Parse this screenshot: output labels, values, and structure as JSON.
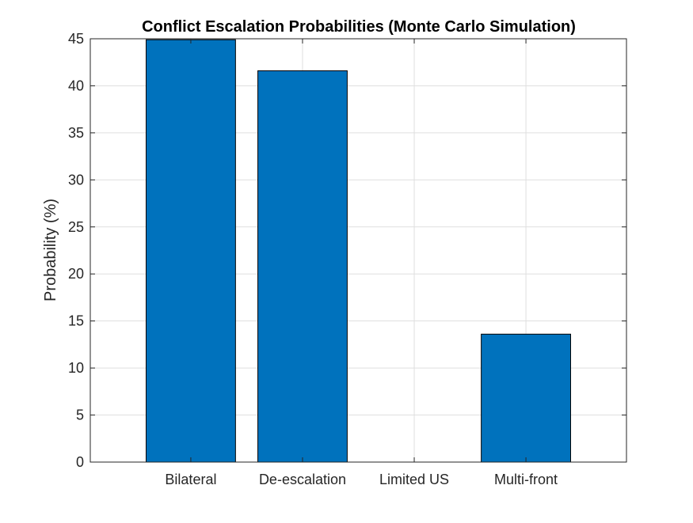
{
  "chart_data": {
    "type": "bar",
    "title": "Conflict Escalation Probabilities (Monte Carlo Simulation)",
    "xlabel": "",
    "ylabel": "Probability (%)",
    "categories": [
      "Bilateral",
      "De-escalation",
      "Limited US",
      "Multi-front"
    ],
    "values": [
      44.9,
      41.6,
      0,
      13.6
    ],
    "ylim": [
      0,
      45
    ],
    "yticks": [
      0,
      5,
      10,
      15,
      20,
      25,
      30,
      35,
      40,
      45
    ],
    "grid": true,
    "legend": "none",
    "colors": {
      "bar": "#0072BD",
      "bar_edge": "#000000",
      "grid": "#DFDFDF",
      "axis": "#262626"
    }
  }
}
